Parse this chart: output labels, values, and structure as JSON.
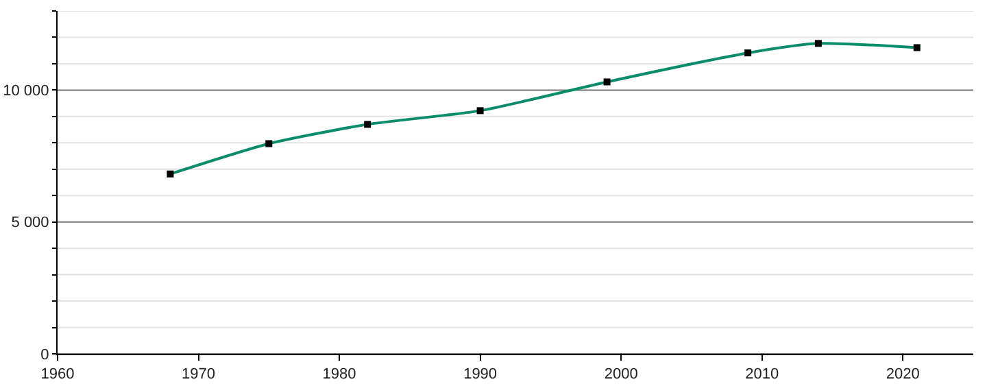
{
  "chart_data": {
    "type": "line",
    "x": [
      1968,
      1975,
      1982,
      1990,
      1999,
      2009,
      2014,
      2021
    ],
    "series": [
      {
        "color": "#0b8c6b",
        "values": [
          6820,
          7970,
          8700,
          9220,
          10310,
          11410,
          11770,
          11610
        ]
      }
    ],
    "xlim": [
      1960,
      2025
    ],
    "xticks": [
      1960,
      1970,
      1980,
      1990,
      2000,
      2010,
      2020
    ],
    "ylim": [
      0,
      13000
    ],
    "yticks": [
      0,
      {
        "value": 1000,
        "label": null
      },
      {
        "value": 2000,
        "label": null
      },
      {
        "value": 3000,
        "label": null
      },
      {
        "value": 4000,
        "label": null
      },
      {
        "value": 5000,
        "label": "5 000"
      },
      {
        "value": 6000,
        "label": null
      },
      {
        "value": 7000,
        "label": null
      },
      {
        "value": 8000,
        "label": null
      },
      {
        "value": 9000,
        "label": null
      },
      {
        "value": 10000,
        "label": "10 000"
      },
      {
        "value": 11000,
        "label": null
      },
      {
        "value": 12000,
        "label": null
      },
      {
        "value": 13000,
        "label": null
      }
    ],
    "grid": "y",
    "marker": "square",
    "line_style": "solid",
    "legend": false
  }
}
